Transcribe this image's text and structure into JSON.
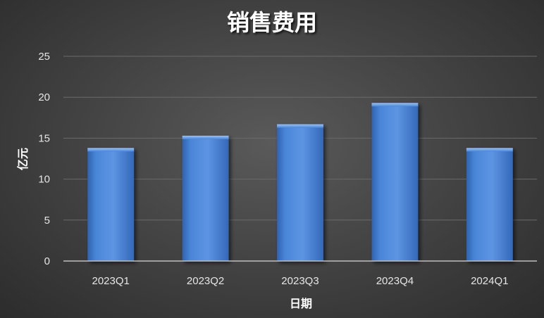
{
  "chart_data": {
    "type": "bar",
    "title": "销售费用",
    "xlabel": "日期",
    "ylabel": "亿元",
    "categories": [
      "2023Q1",
      "2023Q2",
      "2023Q3",
      "2023Q4",
      "2024Q1"
    ],
    "values": [
      13.8,
      15.3,
      16.7,
      19.3,
      13.8
    ],
    "ylim": [
      0,
      25
    ],
    "yticks": [
      0,
      5,
      10,
      15,
      20,
      25
    ],
    "grid": true,
    "legend": "none",
    "colors": {
      "bar": "#4a86d8",
      "bar_light": "#6aa2ea",
      "bar_dark": "#2f63b0",
      "grid": "#6a6a6a",
      "axis": "#bfbfbf",
      "text": "#ffffff"
    }
  }
}
